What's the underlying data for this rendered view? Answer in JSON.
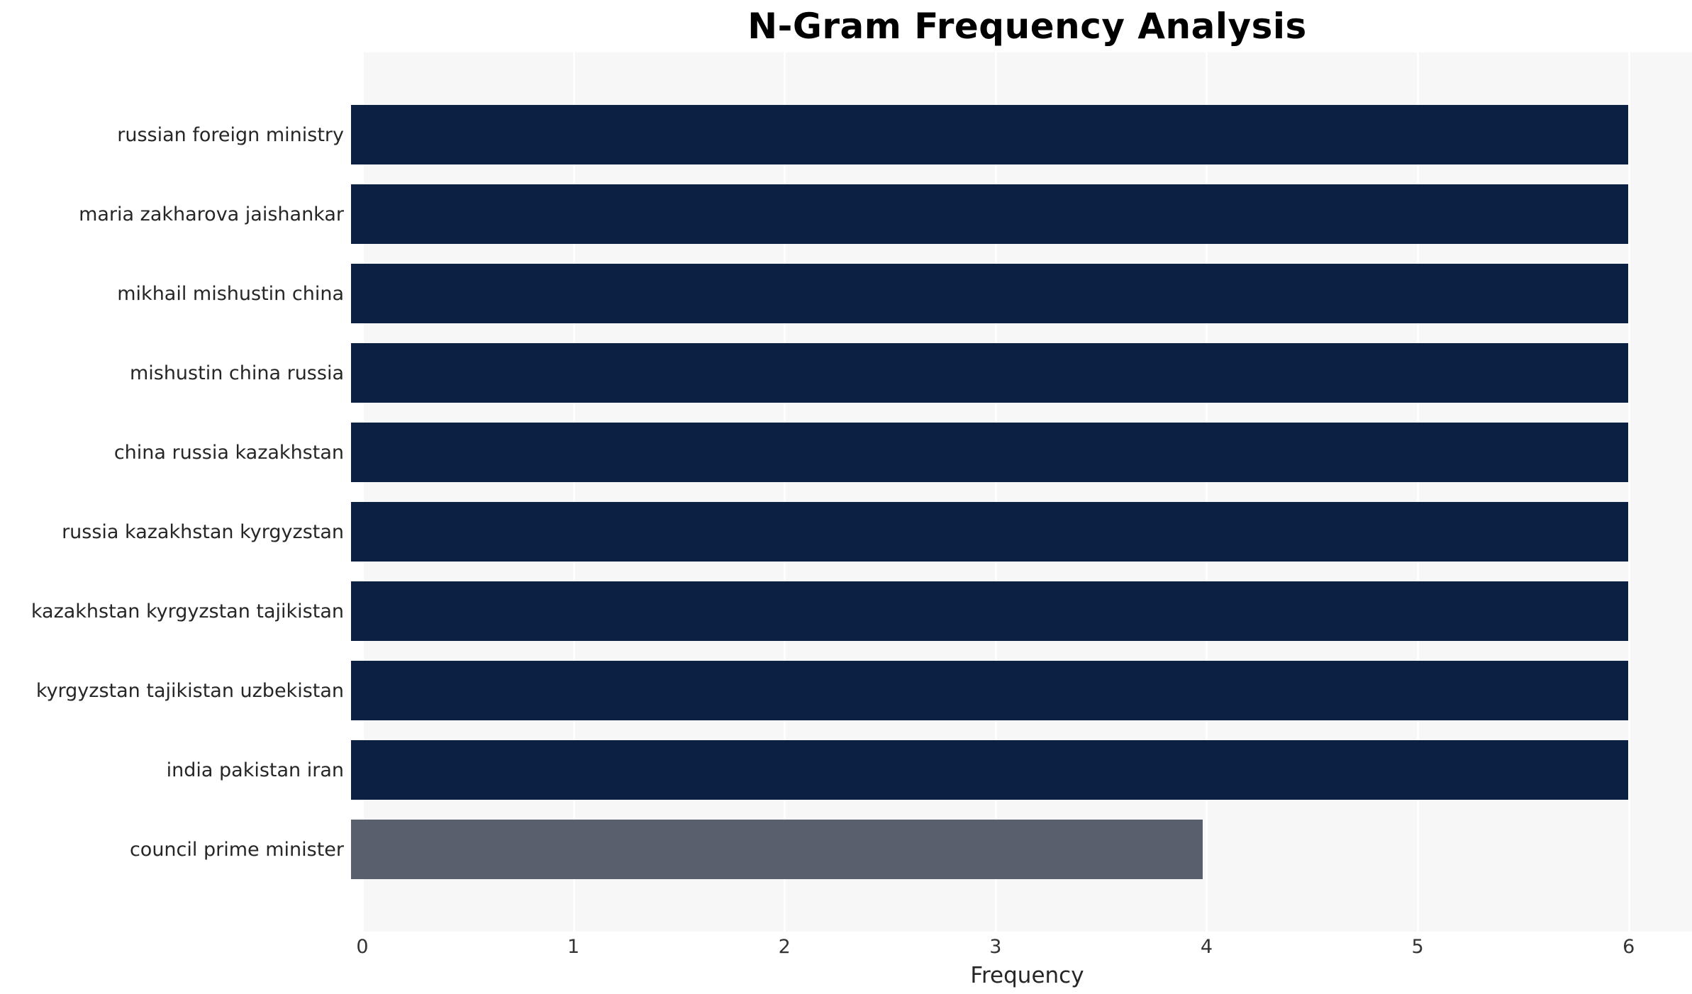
{
  "chart_data": {
    "type": "bar",
    "orientation": "horizontal",
    "title": "N-Gram Frequency Analysis",
    "xlabel": "Frequency",
    "ylabel": "",
    "categories": [
      "russian foreign ministry",
      "maria zakharova jaishankar",
      "mikhail mishustin china",
      "mishustin china russia",
      "china russia kazakhstan",
      "russia kazakhstan kyrgyzstan",
      "kazakhstan kyrgyzstan tajikistan",
      "kyrgyzstan tajikistan uzbekistan",
      "india pakistan iran",
      "council prime minister"
    ],
    "values": [
      6,
      6,
      6,
      6,
      6,
      6,
      6,
      6,
      6,
      4
    ],
    "bar_colors": [
      "#0c2044",
      "#0c2044",
      "#0c2044",
      "#0c2044",
      "#0c2044",
      "#0c2044",
      "#0c2044",
      "#0c2044",
      "#0c2044",
      "#5a5f6d"
    ],
    "xticks": [
      0,
      1,
      2,
      3,
      4,
      5,
      6
    ],
    "xlim": [
      0,
      6.3
    ],
    "grid": "vertical-white-on-lightgray",
    "legend": "none",
    "colors": {
      "bar_primary": "#0c2044",
      "bar_secondary": "#5a5f6d",
      "plot_background": "#f7f7f7",
      "gridline": "#ffffff",
      "title_text": "#000000",
      "tick_text": "#333333"
    }
  }
}
